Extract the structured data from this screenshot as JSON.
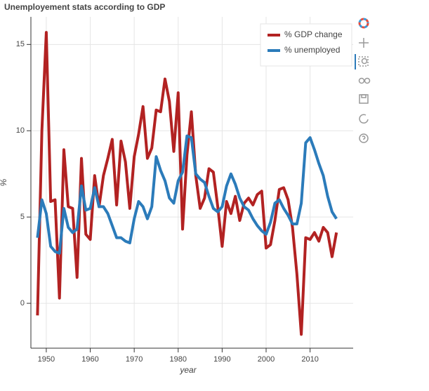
{
  "chart_data": {
    "type": "line",
    "title": "Unemployement stats according to GDP",
    "x_label": "year",
    "y_label": "%",
    "x": [
      1948,
      1949,
      1950,
      1951,
      1952,
      1953,
      1954,
      1955,
      1956,
      1957,
      1958,
      1959,
      1960,
      1961,
      1962,
      1963,
      1964,
      1965,
      1966,
      1967,
      1968,
      1969,
      1970,
      1971,
      1972,
      1973,
      1974,
      1975,
      1976,
      1977,
      1978,
      1979,
      1980,
      1981,
      1982,
      1983,
      1984,
      1985,
      1986,
      1987,
      1988,
      1989,
      1990,
      1991,
      1992,
      1993,
      1994,
      1995,
      1996,
      1997,
      1998,
      1999,
      2000,
      2001,
      2002,
      2003,
      2004,
      2005,
      2006,
      2007,
      2008,
      2009,
      2010,
      2011,
      2012,
      2013,
      2014,
      2015,
      2016
    ],
    "series": [
      {
        "name": "% GDP change",
        "color": "#b22222",
        "values": [
          -0.7,
          10.0,
          15.7,
          5.9,
          6.0,
          0.3,
          8.9,
          5.6,
          5.5,
          1.5,
          8.4,
          4.0,
          3.7,
          7.4,
          5.6,
          7.4,
          8.4,
          9.5,
          5.7,
          9.4,
          8.2,
          5.5,
          8.5,
          9.8,
          11.4,
          8.4,
          9.0,
          11.2,
          11.1,
          13.0,
          11.7,
          8.8,
          12.2,
          4.3,
          8.6,
          11.1,
          7.4,
          5.5,
          6.1,
          7.8,
          7.6,
          5.6,
          3.3,
          5.9,
          5.2,
          6.2,
          4.8,
          5.8,
          6.1,
          5.7,
          6.3,
          6.5,
          3.2,
          3.4,
          4.8,
          6.6,
          6.7,
          6.0,
          4.4,
          1.7,
          -1.8,
          3.8,
          3.7,
          4.1,
          3.6,
          4.4,
          4.1,
          2.7,
          4.1
        ]
      },
      {
        "name": "% unemployed",
        "color": "#2b7bba",
        "values": [
          3.8,
          6.0,
          5.2,
          3.3,
          3.0,
          2.9,
          5.5,
          4.4,
          4.1,
          4.3,
          6.8,
          5.4,
          5.5,
          6.7,
          5.6,
          5.6,
          5.2,
          4.5,
          3.8,
          3.8,
          3.6,
          3.5,
          4.9,
          5.9,
          5.6,
          4.9,
          5.6,
          8.5,
          7.7,
          7.1,
          6.1,
          5.8,
          7.1,
          7.6,
          9.7,
          9.6,
          7.5,
          7.2,
          7.0,
          6.2,
          5.5,
          5.3,
          5.6,
          6.8,
          7.5,
          6.9,
          6.1,
          5.6,
          5.4,
          4.9,
          4.5,
          4.2,
          4.0,
          4.7,
          5.8,
          6.0,
          5.5,
          5.1,
          4.6,
          4.6,
          5.8,
          9.3,
          9.6,
          8.9,
          8.1,
          7.4,
          6.2,
          5.3,
          4.9
        ]
      }
    ],
    "xlim": [
      1946.5,
      2019.8
    ],
    "ylim": [
      -2.6,
      16.6
    ],
    "xticks": [
      1950,
      1960,
      1970,
      1980,
      1990,
      2000,
      2010
    ],
    "yticks": [
      0,
      5,
      10,
      15
    ],
    "grid": true,
    "legend_position": "top-right"
  }
}
